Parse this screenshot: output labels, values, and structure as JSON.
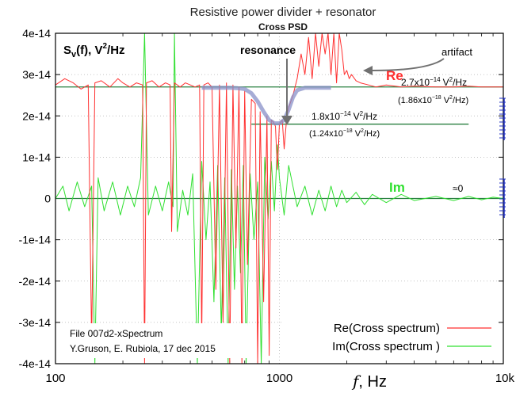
{
  "chart_data": {
    "type": "line",
    "title": "Resistive power divider + resonator",
    "subtitle": "Cross PSD",
    "ylabel_main": "S",
    "ylabel_sub": "v",
    "ylabel_rest": "(f), V",
    "ylabel_sup": "2",
    "ylabel_tail": "/Hz",
    "xlabel_f": "f",
    "xlabel_unit": ", Hz",
    "x_scale": "log",
    "xlim": [
      100,
      10000
    ],
    "ylim": [
      -4e-14,
      4e-14
    ],
    "grid": true,
    "x_ticks": [
      {
        "value": 100,
        "label": "100"
      },
      {
        "value": 1000,
        "label": "1000"
      },
      {
        "value": 10000,
        "label": "10k"
      }
    ],
    "y_ticks": [
      {
        "value": 4e-14,
        "label": "4e-14"
      },
      {
        "value": 3e-14,
        "label": "3e-14"
      },
      {
        "value": 2e-14,
        "label": "2e-14"
      },
      {
        "value": 1e-14,
        "label": "1e-14"
      },
      {
        "value": 0,
        "label": "0"
      },
      {
        "value": -1e-14,
        "label": "-1e-14"
      },
      {
        "value": -2e-14,
        "label": "-2e-14"
      },
      {
        "value": -3e-14,
        "label": "-3e-14"
      },
      {
        "value": -4e-14,
        "label": "-4e-14"
      }
    ],
    "series": [
      {
        "name": "Re(Cross spectrum)",
        "color": "#ff3030",
        "x": [
          100,
          110,
          120,
          130,
          140,
          145,
          150,
          160,
          175,
          190,
          200,
          215,
          230,
          245,
          250,
          255,
          270,
          290,
          310,
          325,
          330,
          340,
          360,
          380,
          400,
          420,
          440,
          450,
          460,
          480,
          500,
          520,
          540,
          560,
          580,
          600,
          620,
          640,
          660,
          680,
          700,
          720,
          750,
          780,
          800,
          820,
          850,
          880,
          900,
          920,
          940,
          960,
          980,
          1000,
          1030,
          1050,
          1080,
          1100,
          1150,
          1200,
          1250,
          1300,
          1350,
          1400,
          1450,
          1500,
          1550,
          1600,
          1650,
          1700,
          1750,
          1800,
          1850,
          1900,
          1950,
          2000,
          2050,
          2100,
          2200,
          2300,
          2500,
          2700,
          3000,
          3500,
          4000,
          5000,
          6000,
          7000,
          8000,
          9000,
          10000
        ],
        "y": [
          2.75e-14,
          2.9e-14,
          2.8e-14,
          2.65e-14,
          2.75e-14,
          -3.5e-14,
          2.8e-14,
          2.85e-14,
          2.7e-14,
          2.9e-14,
          2.8e-14,
          2.7e-14,
          2.8e-14,
          2.75e-14,
          -4e-14,
          2.8e-14,
          2.85e-14,
          2.7e-14,
          2.8e-14,
          2.75e-14,
          -8e-15,
          2.8e-14,
          2.7e-14,
          2.8e-14,
          2.75e-14,
          2.7e-14,
          2.75e-14,
          -3.5e-14,
          2.75e-14,
          2.8e-14,
          2.7e-14,
          -2.2e-14,
          2.75e-14,
          -3e-14,
          2.8e-14,
          -4e-14,
          2.75e-14,
          -1.2e-14,
          2.7e-14,
          -4e-14,
          2.6e-14,
          -1.6e-14,
          2.4e-14,
          2.3e-14,
          -4e-14,
          2.1e-14,
          -2.5e-14,
          2e-14,
          -3.8e-14,
          1.9e-14,
          1.85e-14,
          1.75e-14,
          7e-15,
          1.8e-14,
          1.9e-14,
          1.2e-14,
          2e-14,
          2.2e-14,
          2.5e-14,
          2.9e-14,
          3.5e-14,
          3e-14,
          3.9e-14,
          2.9e-14,
          4e-14,
          3.2e-14,
          4e-14,
          3.5e-14,
          4e-14,
          3e-14,
          4e-14,
          2.8e-14,
          4e-14,
          3.6e-14,
          3e-14,
          3.1e-14,
          2.9e-14,
          3e-14,
          2.85e-14,
          2.8e-14,
          2.75e-14,
          2.7e-14,
          2.75e-14,
          2.7e-14,
          2.72e-14,
          2.7e-14,
          2.7e-14,
          2.72e-14,
          2.7e-14,
          2.7e-14,
          2.7e-14
        ]
      },
      {
        "name": "Im(Cross spectrum )",
        "color": "#30e030",
        "x": [
          100,
          108,
          115,
          125,
          135,
          145,
          150,
          155,
          165,
          180,
          195,
          210,
          225,
          240,
          250,
          260,
          280,
          300,
          320,
          335,
          340,
          350,
          370,
          390,
          410,
          430,
          450,
          470,
          490,
          510,
          530,
          550,
          570,
          590,
          610,
          630,
          650,
          670,
          690,
          710,
          740,
          770,
          800,
          830,
          860,
          890,
          920,
          950,
          980,
          1000,
          1050,
          1100,
          1200,
          1300,
          1400,
          1500,
          1600,
          1700,
          1800,
          1900,
          2000,
          2200,
          2400,
          2600,
          3000,
          3500,
          4000,
          5000,
          6000,
          7000,
          8000,
          9000,
          10000
        ],
        "y": [
          0,
          3e-15,
          -3e-15,
          4e-15,
          -2e-15,
          3e-15,
          -4e-14,
          5e-15,
          -3e-15,
          4e-15,
          -4e-15,
          3e-15,
          -2e-15,
          5e-15,
          4e-14,
          -4e-15,
          3e-15,
          -3e-15,
          4e-15,
          -2e-15,
          4e-14,
          -8e-15,
          2e-15,
          -4e-15,
          6e-15,
          -4e-14,
          9e-15,
          -1e-14,
          4e-15,
          -2.5e-14,
          8e-15,
          -3.2e-14,
          5e-15,
          -4e-14,
          7e-15,
          -2.2e-14,
          3e-15,
          -1.8e-14,
          8e-15,
          -4e-14,
          6e-15,
          -1e-14,
          4e-15,
          -4e-14,
          1e-14,
          -5e-15,
          9e-15,
          -3e-15,
          1.3e-14,
          5e-15,
          -4e-15,
          8e-15,
          -2e-15,
          3e-15,
          -4e-15,
          2e-15,
          -3e-15,
          3e-15,
          -2e-15,
          2e-15,
          -1e-15,
          1.5e-15,
          -1.5e-15,
          1e-15,
          -1e-15,
          1e-15,
          -5e-16,
          5e-16,
          -5e-16,
          5e-16,
          -3e-16,
          3e-16,
          0
        ]
      },
      {
        "name": "fit",
        "color": "#8890c8",
        "x": [
          450,
          500,
          550,
          600,
          650,
          700,
          750,
          800,
          850,
          900,
          950,
          1000,
          1050,
          1100,
          1150,
          1200,
          1300,
          1400,
          1500,
          1600,
          1700
        ],
        "y": [
          2.68e-14,
          2.68e-14,
          2.68e-14,
          2.68e-14,
          2.67e-14,
          2.65e-14,
          2.55e-14,
          2.35e-14,
          2.1e-14,
          1.9e-14,
          1.82e-14,
          1.82e-14,
          1.9e-14,
          2.15e-14,
          2.45e-14,
          2.62e-14,
          2.68e-14,
          2.68e-14,
          2.68e-14,
          2.68e-14,
          2.68e-14
        ]
      }
    ],
    "reference_lines": [
      {
        "y": 2.7e-14,
        "x_from": 100,
        "x_to": 10000,
        "color": "#2a8040"
      },
      {
        "y": 1.8e-14,
        "x_from": 750,
        "x_to": 7000,
        "color": "#2a8040"
      },
      {
        "y": 0,
        "x_from": 100,
        "x_to": 10000,
        "color": "#2a8040"
      }
    ],
    "annotations": {
      "re_label": "Re",
      "im_label": "Im",
      "resonance": "resonance",
      "artifact": "artifact",
      "approx_zero": "≈0",
      "ann1_base": "2.7x10",
      "ann1_exp": "−14",
      "ann1_unit": "V",
      "ann1_unit_exp": "2",
      "ann1_tail": "/Hz",
      "ann1_sub_open": "(1.86x10",
      "ann1_sub_exp": "−18",
      "ann1_sub_unit": "V",
      "ann1_sub_unit_exp": "2",
      "ann1_sub_tail": "/Hz)",
      "ann2_base": "1.8x10",
      "ann2_exp": "−14",
      "ann2_unit": "V",
      "ann2_unit_exp": "2",
      "ann2_tail": "/Hz",
      "ann2_sub_open": "(1.24x10",
      "ann2_sub_exp": "−18",
      "ann2_sub_unit": "V",
      "ann2_sub_unit_exp": "2",
      "ann2_sub_tail": "/Hz)"
    },
    "file_info": [
      "File 007d2-xSpectrum",
      "Y.Gruson, E. Rubiola, 17 dec 2015"
    ]
  }
}
